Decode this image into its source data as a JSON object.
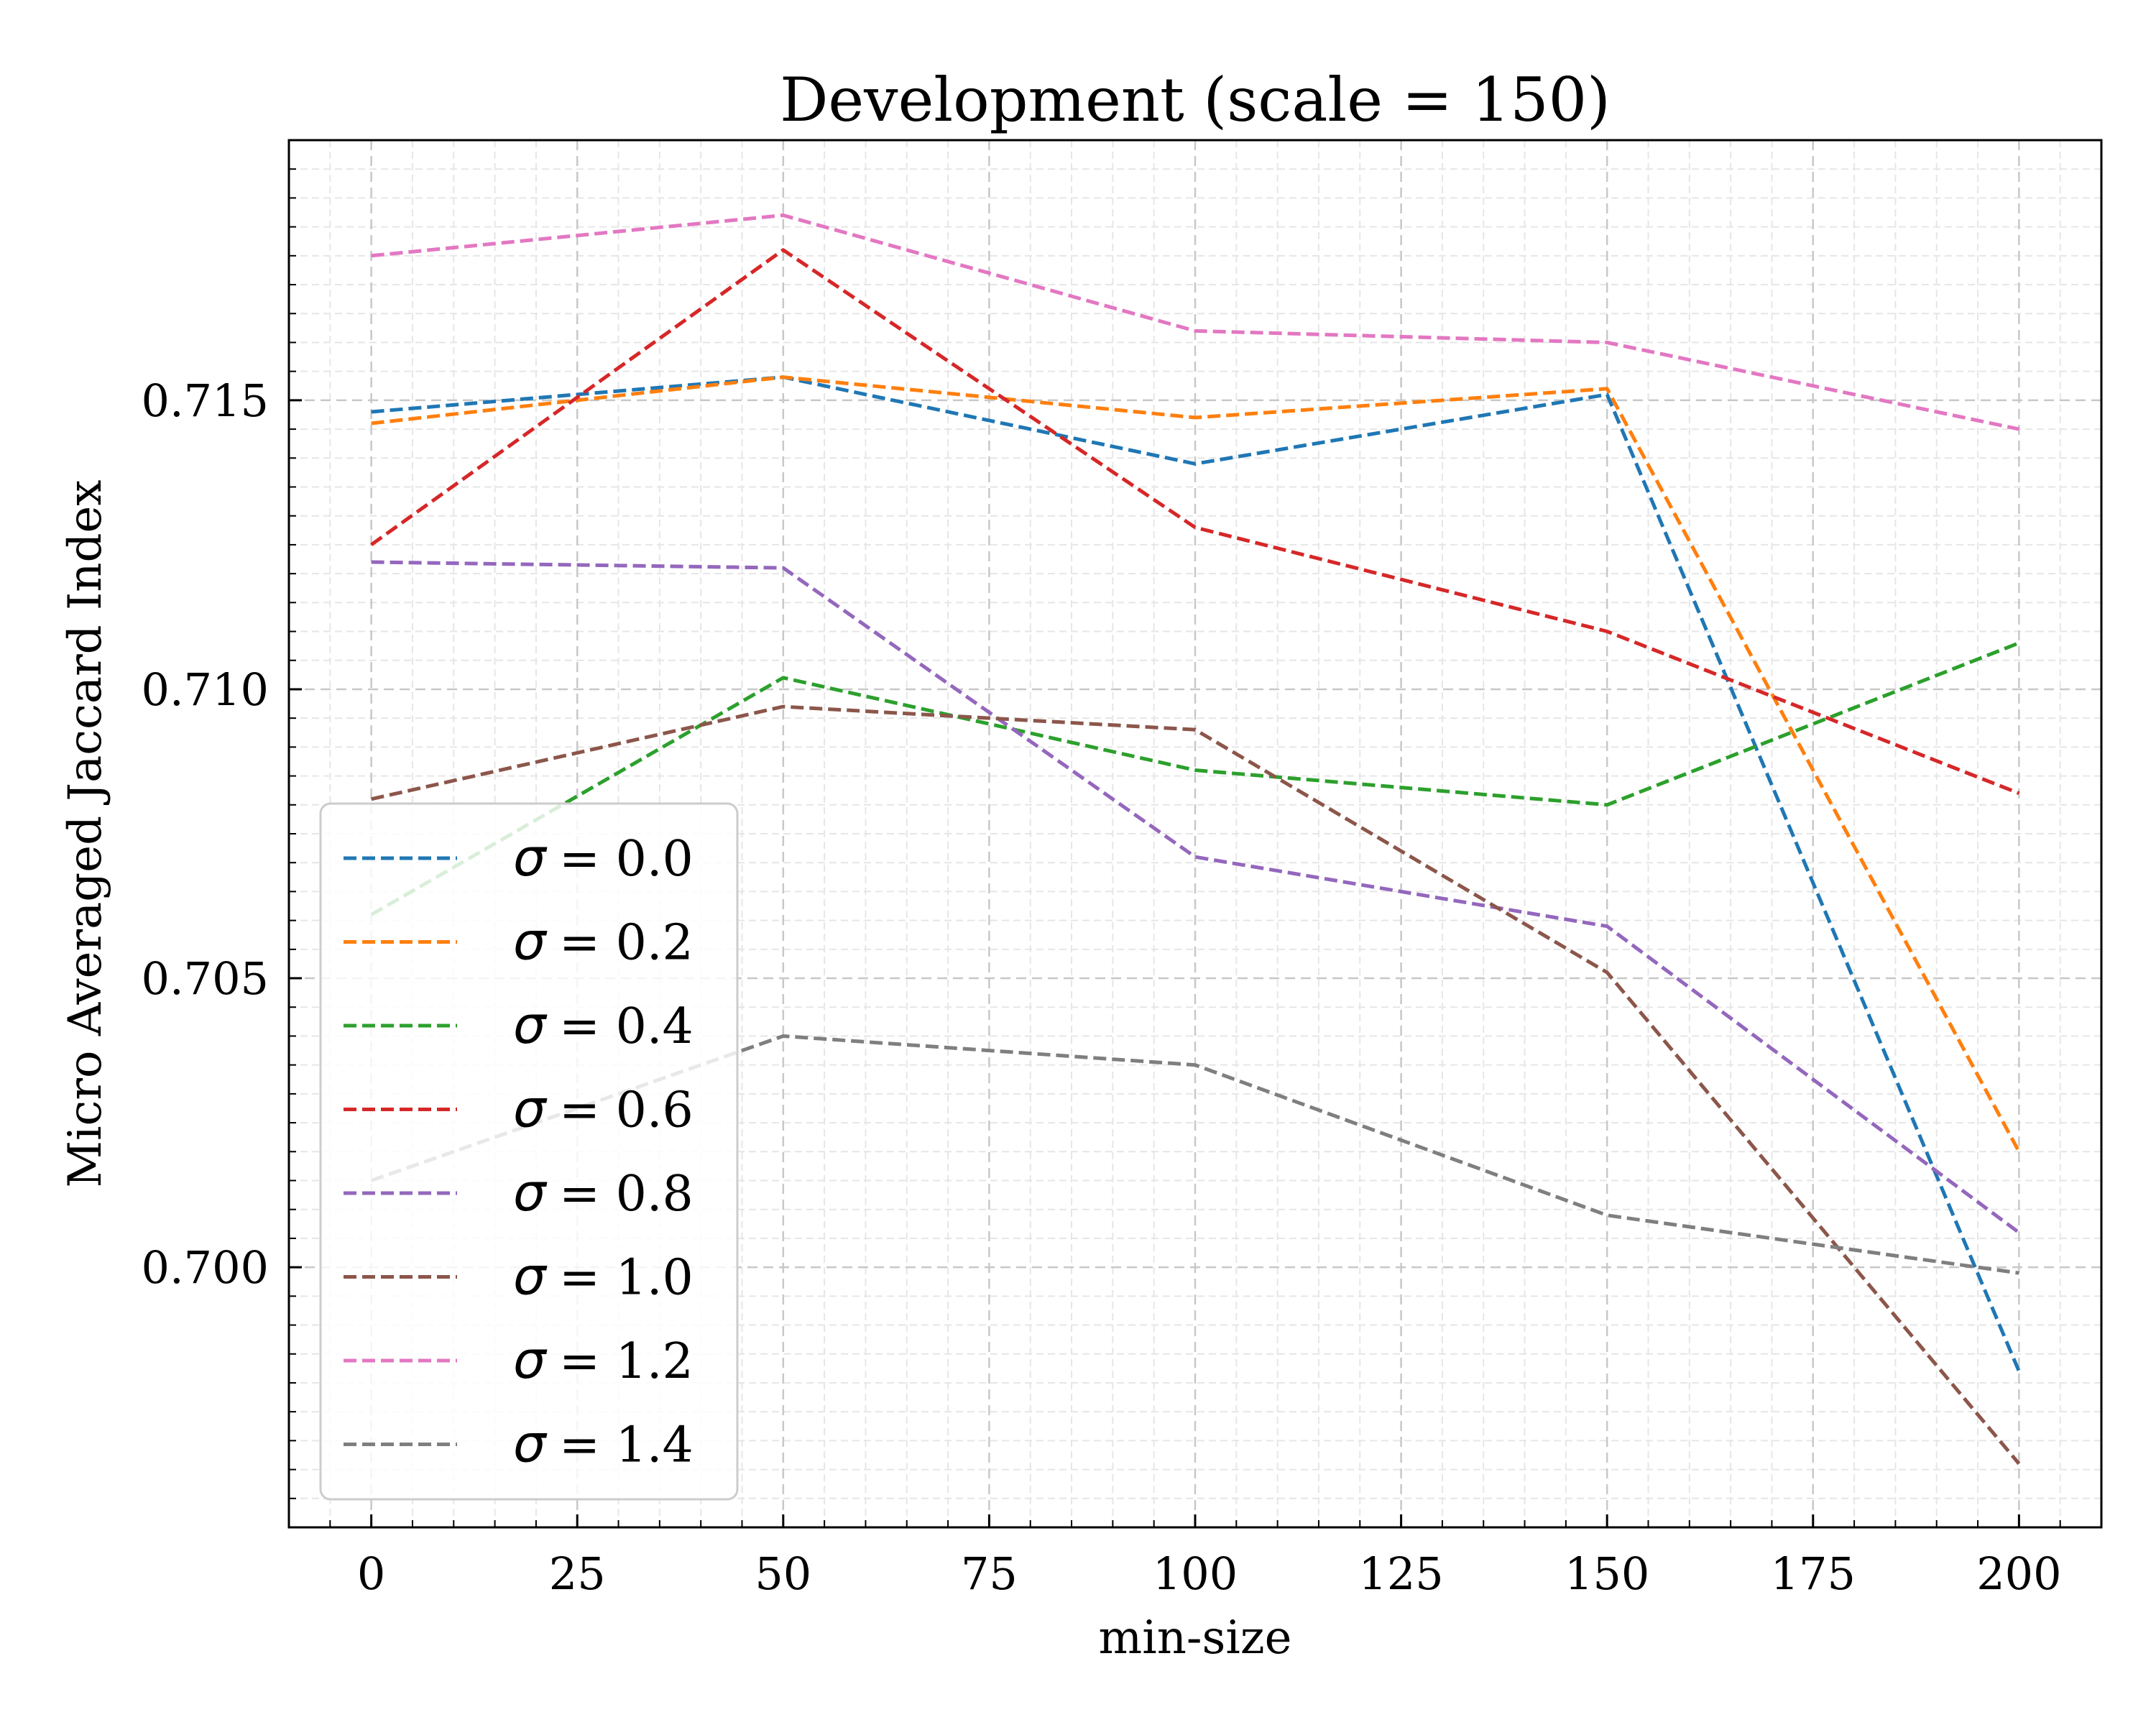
{
  "chart_data": {
    "type": "line",
    "title": "Development (scale = 150)",
    "xlabel": "min-size",
    "ylabel": "Micro Averaged Jaccard Index",
    "x": [
      0,
      50,
      100,
      150,
      200
    ],
    "xlim": [
      -10,
      210
    ],
    "ylim": [
      0.6955,
      0.7195
    ],
    "xticks": [
      0,
      25,
      50,
      75,
      100,
      125,
      150,
      175,
      200
    ],
    "xtick_labels": [
      "0",
      "25",
      "50",
      "75",
      "100",
      "125",
      "150",
      "175",
      "200"
    ],
    "yticks": [
      0.7,
      0.705,
      0.71,
      0.715
    ],
    "ytick_labels": [
      "0.700",
      "0.705",
      "0.710",
      "0.715"
    ],
    "grid": true,
    "line_style": "dashed",
    "legend_position": "lower-left",
    "series": [
      {
        "name": "σ = 0.0",
        "symbol": "σ",
        "label_value": "= 0.0",
        "color": "#1f77b4",
        "values": [
          0.7148,
          0.7154,
          0.7139,
          0.7151,
          0.6982
        ]
      },
      {
        "name": "σ = 0.2",
        "symbol": "σ",
        "label_value": "= 0.2",
        "color": "#ff7f0e",
        "values": [
          0.7146,
          0.7154,
          0.7147,
          0.7152,
          0.702
        ]
      },
      {
        "name": "σ = 0.4",
        "symbol": "σ",
        "label_value": "= 0.4",
        "color": "#2ca02c",
        "values": [
          0.7061,
          0.7102,
          0.7086,
          0.708,
          0.7108
        ]
      },
      {
        "name": "σ = 0.6",
        "symbol": "σ",
        "label_value": "= 0.6",
        "color": "#d62728",
        "values": [
          0.7125,
          0.7176,
          0.7128,
          0.711,
          0.7082
        ]
      },
      {
        "name": "σ = 0.8",
        "symbol": "σ",
        "label_value": "= 0.8",
        "color": "#9467bd",
        "values": [
          0.7122,
          0.7121,
          0.7071,
          0.7059,
          0.7006
        ]
      },
      {
        "name": "σ = 1.0",
        "symbol": "σ",
        "label_value": "= 1.0",
        "color": "#8c564b",
        "values": [
          0.7081,
          0.7097,
          0.7093,
          0.7051,
          0.6966
        ]
      },
      {
        "name": "σ = 1.2",
        "symbol": "σ",
        "label_value": "= 1.2",
        "color": "#e377c2",
        "values": [
          0.7175,
          0.7182,
          0.7162,
          0.716,
          0.7145
        ]
      },
      {
        "name": "σ = 1.4",
        "symbol": "σ",
        "label_value": "= 1.4",
        "color": "#7f7f7f",
        "values": [
          0.7015,
          0.704,
          0.7035,
          0.7009,
          0.6999
        ]
      }
    ]
  }
}
